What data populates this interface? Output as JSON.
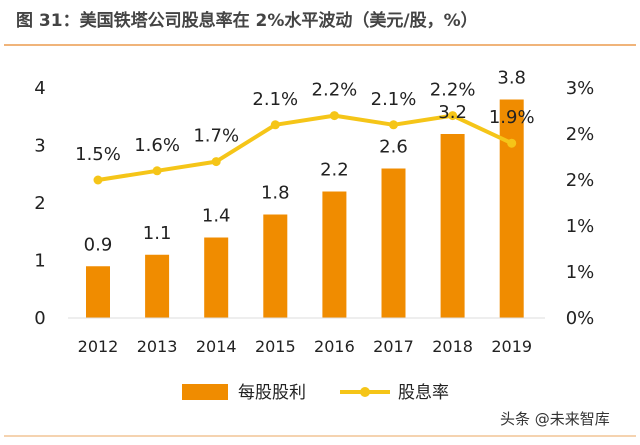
{
  "title": "图 31：美国铁塔公司股息率在 2%水平波动（美元/股，%）",
  "watermark": "头条 @未来智库",
  "colors": {
    "bar": "#f08c00",
    "line": "#f5c518",
    "accent": "#f0b47a"
  },
  "chart_data": {
    "type": "bar+line",
    "categories": [
      "2012",
      "2013",
      "2014",
      "2015",
      "2016",
      "2017",
      "2018",
      "2019"
    ],
    "series": [
      {
        "name": "每股股利",
        "type": "bar",
        "axis": "left",
        "values": [
          0.9,
          1.1,
          1.4,
          1.8,
          2.2,
          2.6,
          3.2,
          3.8
        ],
        "labels": [
          "0.9",
          "1.1",
          "1.4",
          "1.8",
          "2.2",
          "2.6",
          "3.2",
          "3.8"
        ]
      },
      {
        "name": "股息率",
        "type": "line",
        "axis": "right",
        "values": [
          1.5,
          1.6,
          1.7,
          2.1,
          2.2,
          2.1,
          2.2,
          1.9
        ],
        "labels": [
          "1.5%",
          "1.6%",
          "1.7%",
          "2.1%",
          "2.2%",
          "2.1%",
          "2.2%",
          "1.9%"
        ]
      }
    ],
    "left_axis": {
      "ylim": [
        0,
        4
      ],
      "ticks": [
        0,
        1,
        2,
        3,
        4
      ],
      "tick_labels": [
        "0",
        "1",
        "2",
        "3",
        "4"
      ]
    },
    "right_axis": {
      "ylim": [
        0,
        2.5
      ],
      "ticks": [
        0,
        0.5,
        1,
        1.5,
        2,
        2.5
      ],
      "tick_labels": [
        "0%",
        "1%",
        "1%",
        "2%",
        "2%",
        "3%"
      ]
    },
    "grid": false,
    "legend": "bottom"
  }
}
